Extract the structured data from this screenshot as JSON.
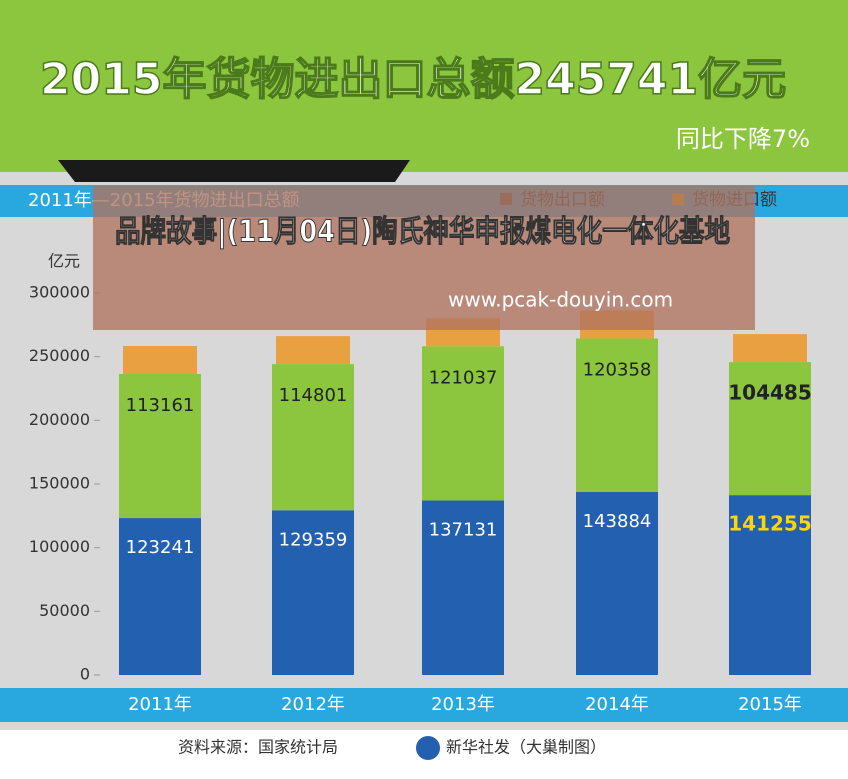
{
  "chart_data": {
    "type": "stacked_bar",
    "title": "2015年货物进出口总额245741亿元",
    "subtitle": "同比下降7%",
    "chart_title": "2011年—2015年货物进出口总额",
    "y_label": "亿元",
    "categories": [
      "2011年",
      "2012年",
      "2013年",
      "2014年",
      "2015年"
    ],
    "series": [
      {
        "name": "货物出口额",
        "color": "#2460b0",
        "values": [
          123241,
          129359,
          137131,
          143884,
          141255
        ]
      },
      {
        "name": "货物进口额",
        "color": "#8cc63f",
        "values": [
          113161,
          114801,
          121037,
          120358,
          104485
        ]
      }
    ],
    "ylim": [
      0,
      300000
    ],
    "yticks": [
      0,
      50000,
      100000,
      150000,
      200000,
      250000,
      300000
    ],
    "source": "资料来源：国家统计局",
    "credit": "新华社发（大巢制图）",
    "overlay_text": "品牌故事|(11月04日)陶氏神华申报煤电化一体化基地",
    "overlay_url": "www.pcak-douyin.com"
  }
}
